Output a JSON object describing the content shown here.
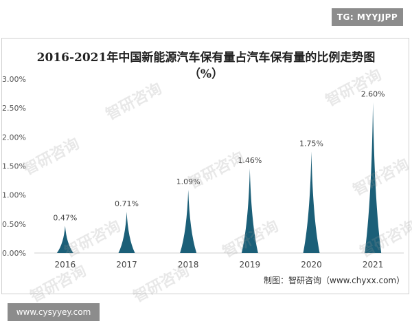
{
  "watermark_tag": "TG: MYYJJPP",
  "watermark_site": "www.cysyyey.com",
  "credit": "制图：智研咨询（www.chyxx.com）",
  "watermark_text": "智研咨询",
  "chart_data": {
    "type": "bar",
    "title": "2016-2021年中国新能源汽车保有量占汽车保有量的比例走势图（%）",
    "categories": [
      "2016",
      "2017",
      "2018",
      "2019",
      "2020",
      "2021"
    ],
    "values": [
      0.47,
      0.71,
      1.09,
      1.46,
      1.75,
      2.6
    ],
    "data_labels": [
      "0.47%",
      "0.71%",
      "1.09%",
      "1.46%",
      "1.75%",
      "2.60%"
    ],
    "y_ticks": [
      "0.00%",
      "0.50%",
      "1.00%",
      "1.50%",
      "2.00%",
      "2.50%",
      "3.00%"
    ],
    "ylim": [
      0,
      3.0
    ],
    "grid": false,
    "bar_color": "#1b5f78"
  }
}
